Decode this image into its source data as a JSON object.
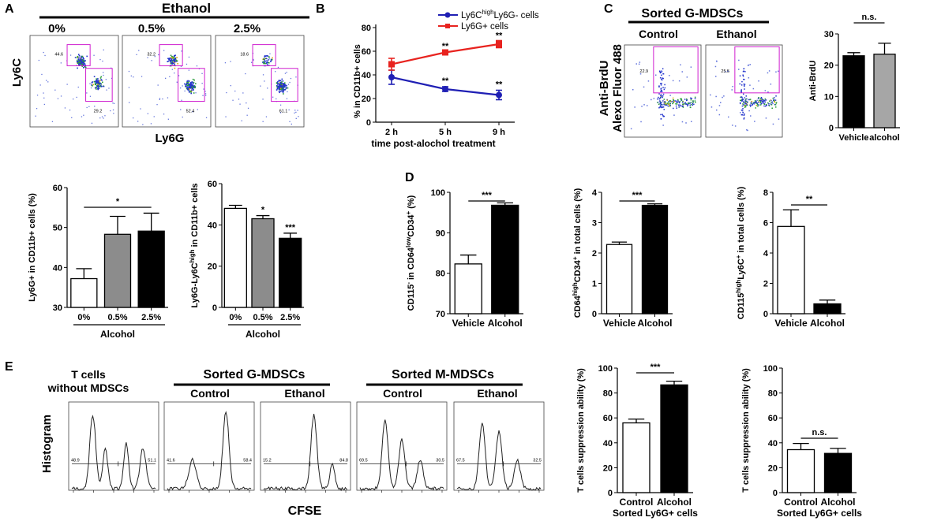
{
  "panel_letters": {
    "A": "A",
    "B": "B",
    "C": "C",
    "D": "D",
    "E": "E"
  },
  "panelA_flow": {
    "header": "Ethanol",
    "conditions": [
      "0%",
      "0.5%",
      "2.5%"
    ],
    "gate_upper": [
      "44.6",
      "32.2",
      "18.6"
    ],
    "gate_lower": [
      "29.2",
      "52.4",
      "61.1"
    ],
    "y_axis": "Ly6C",
    "x_axis": "Ly6G"
  },
  "panelC_flow": {
    "title": "Sorted G-MDSCs",
    "conditions": [
      "Control",
      "Ethanol"
    ],
    "gate_values": [
      "22.9",
      "25.5"
    ],
    "y_axis_line1": "Anti-BrdU",
    "y_axis_line2": "Alexo Fluor 488"
  },
  "panelE_hist": {
    "y_axis": "Histogram",
    "x_axis": "CFSE",
    "group_first_line1": "T cells",
    "group_first_line2": "without MDSCs",
    "group_g": "Sorted G-MDSCs",
    "group_m": "Sorted M-MDSCs",
    "sublabels": [
      "Control",
      "Ethanol",
      "Control",
      "Ethanol"
    ],
    "left_pcts": [
      "48.9",
      "41.6",
      "15.2",
      "69.5",
      "67.5"
    ],
    "right_pcts": [
      "51.1",
      "58.4",
      "84.8",
      "30.5",
      "32.5"
    ]
  },
  "chart_data": [
    {
      "id": "B",
      "type": "line",
      "title": "",
      "xlabel": "time post-alochol treatment",
      "ylabel": "% in CD11b+ cells",
      "categories": [
        "2 h",
        "5 h",
        "9 h"
      ],
      "ylim": [
        0,
        80
      ],
      "yticks": [
        "0",
        "20",
        "40",
        "60",
        "80"
      ],
      "series": [
        {
          "name": "Ly6C",
          "name_sup": "high",
          "name_tail": "Ly6G- cells",
          "color": "#1f1fb4",
          "values": [
            38,
            28,
            23
          ],
          "errors": [
            6,
            2,
            4
          ],
          "sig": [
            "",
            "**",
            "**"
          ]
        },
        {
          "name": "Ly6G+ cells",
          "color": "#e8231f",
          "values": [
            49,
            59,
            66
          ],
          "errors": [
            5,
            1,
            3
          ],
          "sig": [
            "",
            "**",
            "**"
          ]
        }
      ]
    },
    {
      "id": "C-bar",
      "type": "bar",
      "title": "",
      "xlabel": "",
      "ylabel": "Anti-BrdU",
      "categories": [
        "Vehicle",
        "alcohol"
      ],
      "values": [
        23,
        23.5
      ],
      "errors": [
        1,
        3.5
      ],
      "colors": [
        "#000000",
        "#a6a6a6"
      ],
      "ylim": [
        0,
        30
      ],
      "yticks": [
        "0",
        "10",
        "20",
        "30"
      ],
      "significance": "n.s."
    },
    {
      "id": "A-bar1",
      "type": "bar",
      "title": "",
      "xlabel": "Alcohol",
      "ylabel": "Ly6G+ in CD11b+ cells (%)",
      "categories": [
        "0%",
        "0.5%",
        "2.5%"
      ],
      "values": [
        37.2,
        48.3,
        49.1
      ],
      "errors": [
        2.5,
        4.5,
        4.5
      ],
      "colors": [
        "#ffffff",
        "#8c8c8c",
        "#000000"
      ],
      "ylim": [
        30,
        60
      ],
      "yticks": [
        "30",
        "40",
        "50",
        "60"
      ],
      "significance": "*"
    },
    {
      "id": "A-bar2",
      "type": "bar",
      "title": "",
      "xlabel": "Alcohol",
      "ylabel": "Ly6G-Ly6C",
      "ylabel_sup": "high",
      "ylabel_tail": " in CD11b+ cells",
      "categories": [
        "0%",
        "0.5%",
        "2.5%"
      ],
      "values": [
        48,
        43,
        33.5
      ],
      "errors": [
        1.5,
        1.5,
        2.5
      ],
      "colors": [
        "#ffffff",
        "#8c8c8c",
        "#000000"
      ],
      "ylim": [
        0,
        60
      ],
      "yticks": [
        "0",
        "20",
        "40",
        "60"
      ],
      "bar_sig": [
        "",
        "*",
        "***"
      ]
    },
    {
      "id": "D-bar1",
      "type": "bar",
      "title": "",
      "xlabel": "",
      "ylabel": "CD115",
      "ylabel_sup1": "-",
      "ylabel_mid": " in CD64",
      "ylabel_sup2": "low",
      "ylabel_mid2": "CD34",
      "ylabel_sup3": "+",
      "ylabel_tail": " (%)",
      "categories": [
        "Vehicle",
        "Alcohol"
      ],
      "values": [
        82.3,
        96.8
      ],
      "errors": [
        2.2,
        0.6
      ],
      "colors": [
        "#ffffff",
        "#000000"
      ],
      "ylim": [
        70,
        100
      ],
      "yticks": [
        "70",
        "80",
        "90",
        "100"
      ],
      "significance": "***"
    },
    {
      "id": "D-bar2",
      "type": "bar",
      "title": "",
      "xlabel": "",
      "ylabel": "CD64",
      "ylabel_sup1": "high",
      "ylabel_mid": "CD34",
      "ylabel_sup2": "+",
      "ylabel_tail": " in total cells (%)",
      "categories": [
        "Vehicle",
        "Alcohol"
      ],
      "values": [
        2.28,
        3.57
      ],
      "errors": [
        0.08,
        0.05
      ],
      "colors": [
        "#ffffff",
        "#000000"
      ],
      "ylim": [
        0,
        4
      ],
      "yticks": [
        "0",
        "1",
        "2",
        "3",
        "4"
      ],
      "significance": "***"
    },
    {
      "id": "D-bar3",
      "type": "bar",
      "title": "",
      "xlabel": "",
      "ylabel": "CD115",
      "ylabel_sup1": "high",
      "ylabel_mid": "Ly6C",
      "ylabel_sup2": "+",
      "ylabel_tail": " in total cells (%)",
      "categories": [
        "Vehicle",
        "Alcohol"
      ],
      "values": [
        5.75,
        0.65
      ],
      "errors": [
        1.1,
        0.25
      ],
      "colors": [
        "#ffffff",
        "#000000"
      ],
      "ylim": [
        0,
        8
      ],
      "yticks": [
        "0",
        "2",
        "4",
        "6",
        "8"
      ],
      "significance": "**"
    },
    {
      "id": "E-bar1",
      "type": "bar",
      "title": "",
      "xlabel": "Sorted Ly6G+ cells",
      "ylabel": "T cells suppression ability (%)",
      "categories": [
        "Control",
        "Alcohol"
      ],
      "values": [
        56,
        86.5
      ],
      "errors": [
        3,
        3
      ],
      "colors": [
        "#ffffff",
        "#000000"
      ],
      "ylim": [
        0,
        100
      ],
      "yticks": [
        "0",
        "20",
        "40",
        "60",
        "80",
        "100"
      ],
      "significance": "***"
    },
    {
      "id": "E-bar2",
      "type": "bar",
      "title": "",
      "xlabel": "Sorted Ly6G+ cells",
      "ylabel": "T cells suppression ability (%)",
      "categories": [
        "Control",
        "Alcohol"
      ],
      "values": [
        34.5,
        31.5
      ],
      "errors": [
        5,
        4
      ],
      "colors": [
        "#ffffff",
        "#000000"
      ],
      "ylim": [
        0,
        100
      ],
      "yticks": [
        "0",
        "20",
        "40",
        "60",
        "80",
        "100"
      ],
      "significance": "n.s."
    }
  ]
}
